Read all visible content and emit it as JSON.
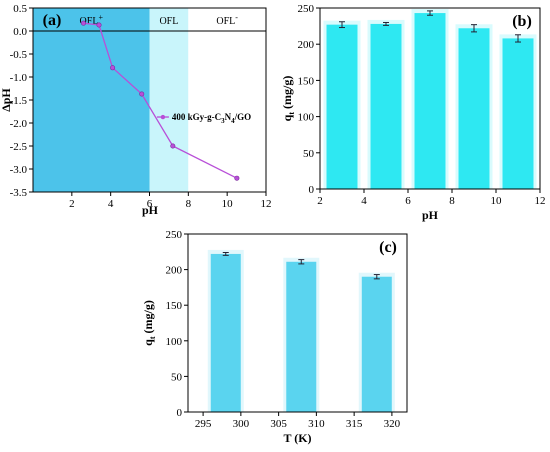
{
  "chart_data": [
    {
      "panel": "(a)",
      "type": "line",
      "xlabel": "pH",
      "ylabel": "ΔpH",
      "xlim": [
        0,
        12
      ],
      "ylim": [
        -3.5,
        0.5
      ],
      "xticks": [
        "2",
        "4",
        "6",
        "8",
        "10",
        "12"
      ],
      "yticks": [
        "0.5",
        "0.0",
        "-0.5",
        "-1.0",
        "-1.5",
        "-2.0",
        "-2.5",
        "-3.0",
        "-3.5"
      ],
      "regions": [
        {
          "label": "OFL",
          "sup": "+",
          "from": 0,
          "to": 6,
          "color": "#4cc3ea"
        },
        {
          "label": "OFL",
          "sup": "",
          "from": 6,
          "to": 8,
          "color": "#c9f5fb"
        },
        {
          "label": "OFL",
          "sup": "-",
          "from": 8,
          "to": 12,
          "color": "#ffffff"
        }
      ],
      "series": [
        {
          "name": "400 kGy-g-C3N4/GO",
          "color": "#b84fd8",
          "x": [
            2.6,
            3.4,
            4.1,
            5.6,
            7.2,
            10.5
          ],
          "y": [
            0.17,
            0.13,
            -0.8,
            -1.37,
            -2.5,
            -3.2
          ]
        }
      ],
      "legend": {
        "position": "right",
        "text_main": "400 kGy-g-C",
        "sub1": "3",
        "mid": "N",
        "sub2": "4",
        "tail": "/GO"
      }
    },
    {
      "panel": "(b)",
      "type": "bar",
      "xlabel": "pH",
      "ylabel": "q",
      "ylabel_sub": "t",
      "ylabel_unit": " (mg/g)",
      "xlim": [
        2,
        12
      ],
      "ylim": [
        0,
        250
      ],
      "xticks": [
        "2",
        "4",
        "6",
        "8",
        "10",
        "12"
      ],
      "yticks": [
        "0",
        "50",
        "100",
        "150",
        "200",
        "250"
      ],
      "bar_color": "#2ee8f2",
      "x": [
        3,
        5,
        7,
        9,
        11
      ],
      "values": [
        227,
        228,
        243,
        222,
        208
      ],
      "errors": [
        4,
        2,
        3,
        5,
        5
      ]
    },
    {
      "panel": "(c)",
      "type": "bar",
      "xlabel": "T (K)",
      "ylabel": "q",
      "ylabel_sub": "t",
      "ylabel_unit": " (mg/g)",
      "xlim": [
        293,
        322
      ],
      "ylim": [
        0,
        250
      ],
      "xticks": [
        "295",
        "300",
        "305",
        "310",
        "315",
        "320"
      ],
      "yticks": [
        "0",
        "50",
        "100",
        "150",
        "200",
        "250"
      ],
      "bar_color": "#5ad4ef",
      "x": [
        298,
        308,
        318
      ],
      "values": [
        222,
        211,
        190
      ],
      "errors": [
        2,
        3,
        3
      ]
    }
  ]
}
